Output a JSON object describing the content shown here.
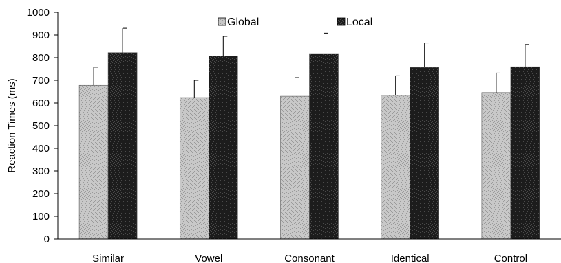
{
  "chart_data": {
    "type": "bar",
    "title": "",
    "xlabel": "",
    "ylabel": "Reaction Times (ms)",
    "ylim": [
      0,
      1000
    ],
    "yticks": [
      0,
      100,
      200,
      300,
      400,
      500,
      600,
      700,
      800,
      900,
      1000
    ],
    "categories": [
      "Similar",
      "Vowel",
      "Consonant",
      "Identical",
      "Control"
    ],
    "series": [
      {
        "name": "Global",
        "color": "#c8c8c8",
        "values": [
          678,
          624,
          630,
          634,
          646
        ],
        "error": [
          80,
          76,
          82,
          86,
          86
        ]
      },
      {
        "name": "Local",
        "color": "#1c1c1c",
        "values": [
          822,
          808,
          818,
          757,
          760
        ],
        "error": [
          108,
          86,
          90,
          108,
          98
        ]
      }
    ],
    "grid": false,
    "legend_position": "top-center",
    "error_bars": "upper"
  }
}
